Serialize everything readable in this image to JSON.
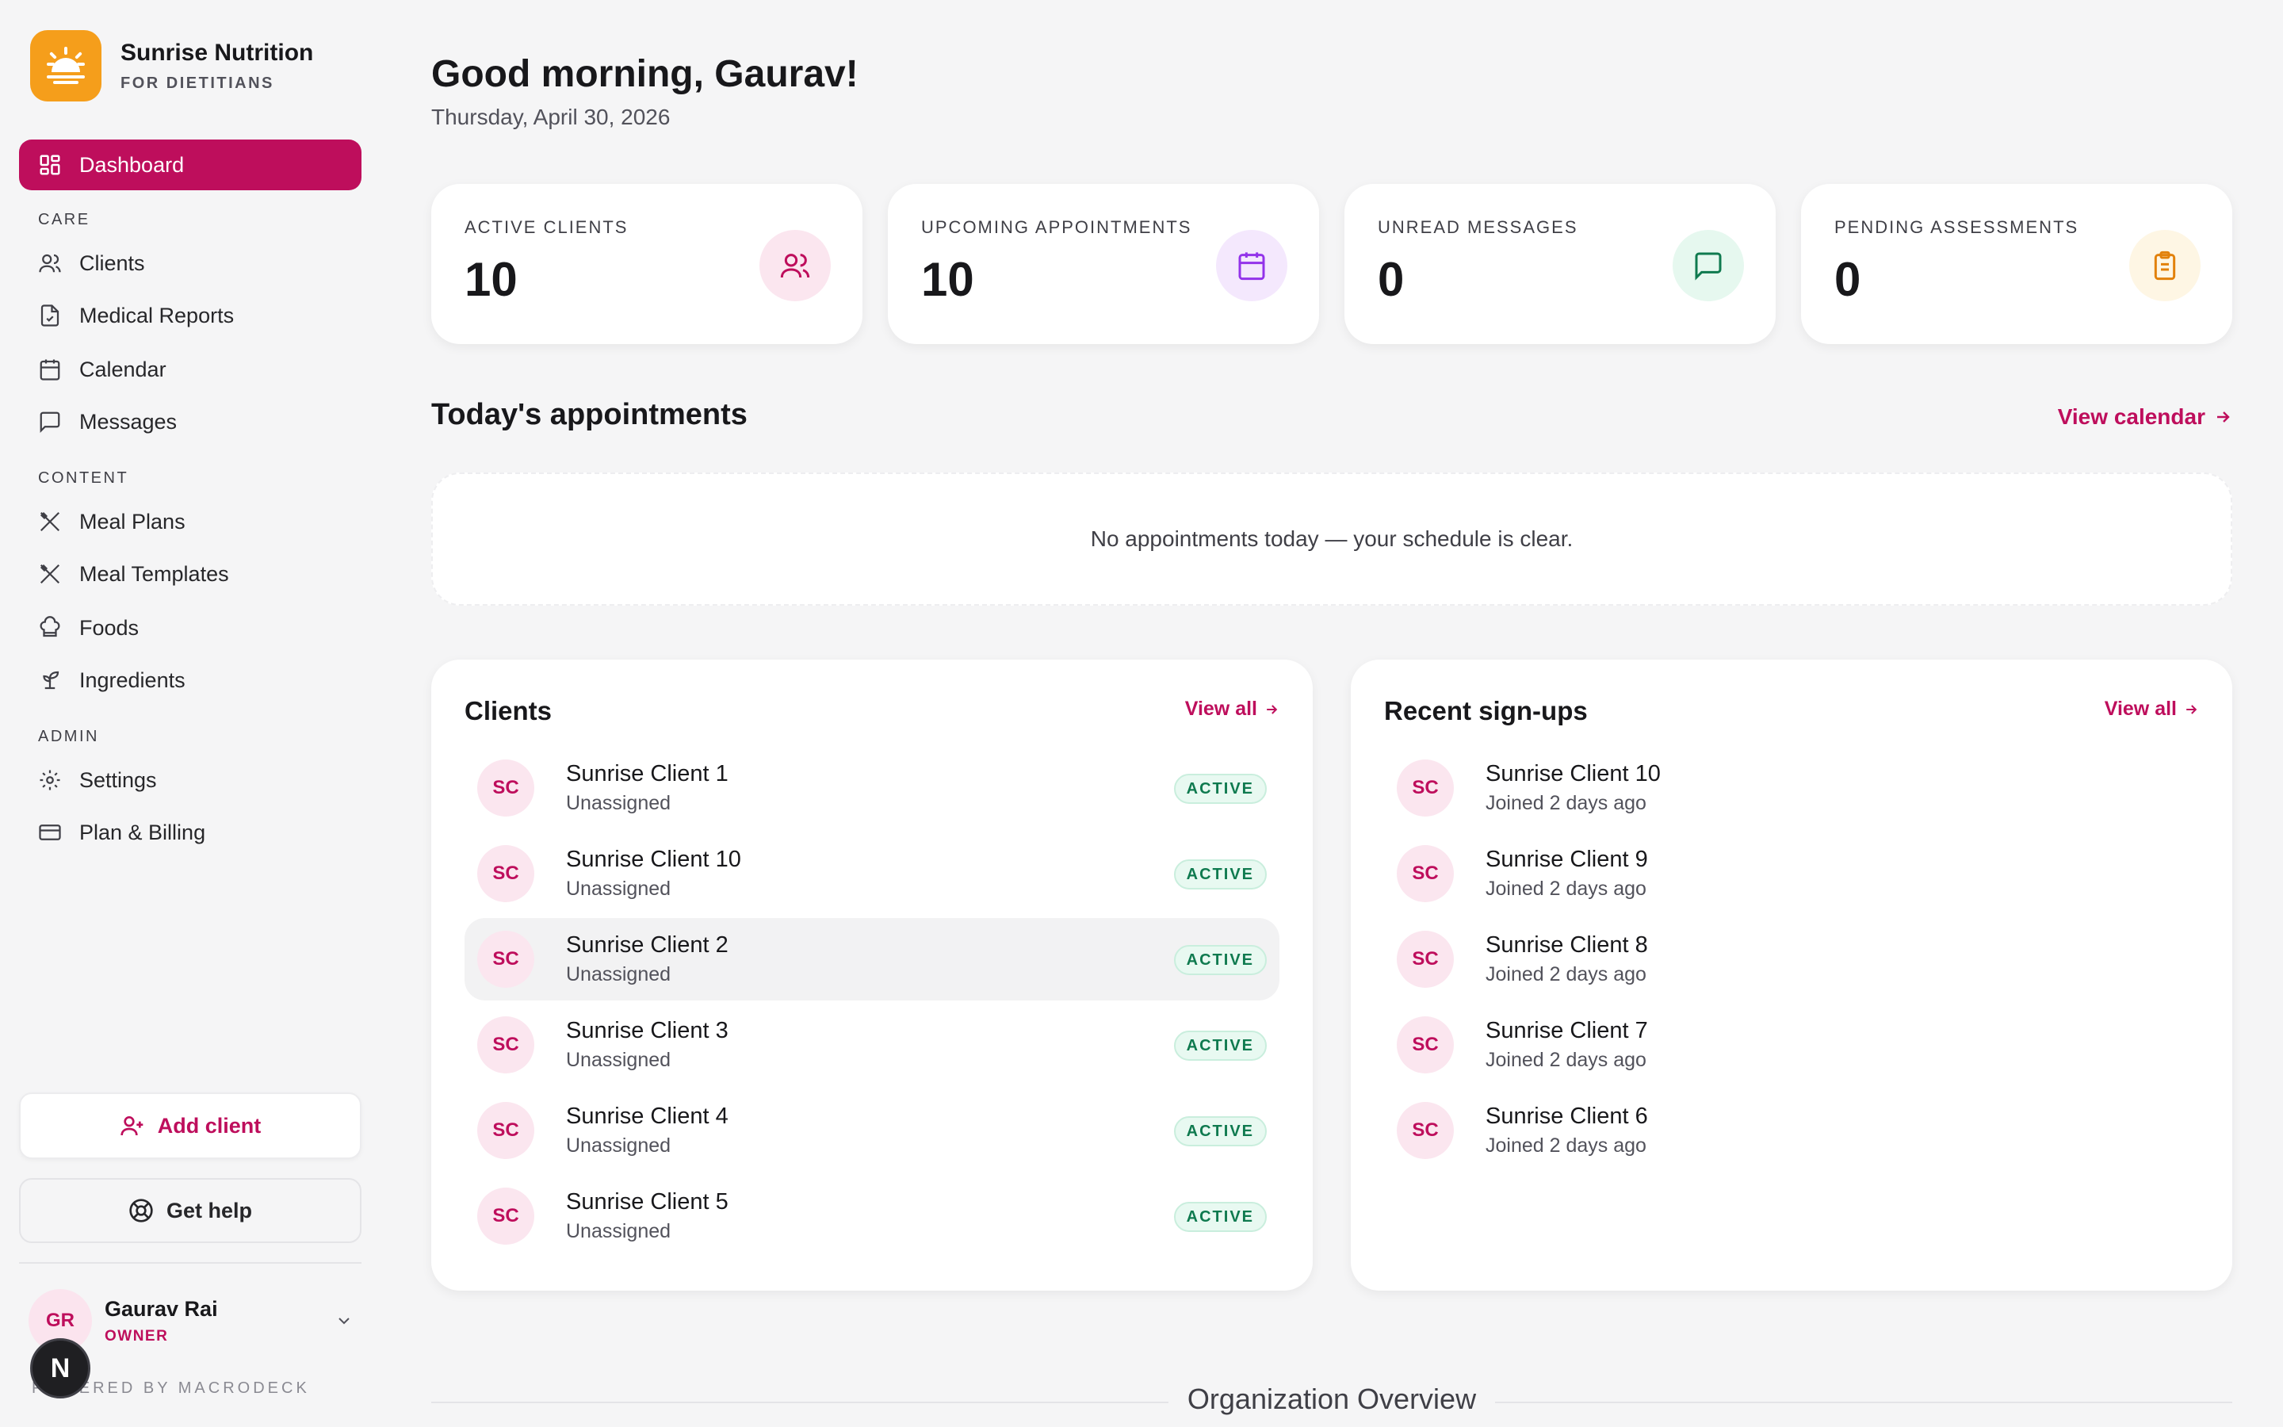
{
  "brand": {
    "name": "Sunrise Nutrition",
    "tagline": "FOR DIETITIANS",
    "accent": "#be0e5c",
    "logo_color": "#f59e1b"
  },
  "nav": {
    "active": {
      "label": "Dashboard",
      "icon": "dashboard-icon"
    },
    "sections": [
      {
        "title": "CARE",
        "items": [
          {
            "label": "Clients",
            "icon": "users-icon"
          },
          {
            "label": "Medical Reports",
            "icon": "report-icon"
          },
          {
            "label": "Calendar",
            "icon": "calendar-icon"
          },
          {
            "label": "Messages",
            "icon": "message-icon"
          }
        ]
      },
      {
        "title": "CONTENT",
        "items": [
          {
            "label": "Meal Plans",
            "icon": "utensils-icon"
          },
          {
            "label": "Meal Templates",
            "icon": "utensils-icon"
          },
          {
            "label": "Foods",
            "icon": "chef-hat-icon"
          },
          {
            "label": "Ingredients",
            "icon": "sprout-icon"
          }
        ]
      },
      {
        "title": "ADMIN",
        "items": [
          {
            "label": "Settings",
            "icon": "gear-icon"
          },
          {
            "label": "Plan & Billing",
            "icon": "credit-card-icon"
          }
        ]
      }
    ]
  },
  "sidebar_actions": {
    "add_client": "Add client",
    "get_help": "Get help"
  },
  "user": {
    "initials": "GR",
    "name": "Gaurav Rai",
    "role": "OWNER"
  },
  "powered_by": "POWERED BY MACRODECK",
  "dev_badge": "N",
  "header": {
    "greeting": "Good morning, Gaurav!",
    "date": "Thursday, April 30, 2026"
  },
  "stats": [
    {
      "label": "ACTIVE CLIENTS",
      "value": "10",
      "icon": "users-icon",
      "color": "#be0e5c",
      "bg": "#fbe6ef"
    },
    {
      "label": "UPCOMING APPOINTMENTS",
      "value": "10",
      "icon": "calendar-icon",
      "color": "#9333ea",
      "bg": "#f4e8fd"
    },
    {
      "label": "UNREAD MESSAGES",
      "value": "0",
      "icon": "message-icon",
      "color": "#0f7a4f",
      "bg": "#e6f8ef"
    },
    {
      "label": "PENDING ASSESSMENTS",
      "value": "0",
      "icon": "clipboard-icon",
      "color": "#e2810b",
      "bg": "#fef6e4"
    }
  ],
  "appointments": {
    "title": "Today's appointments",
    "link": "View calendar",
    "empty": "No appointments today — your schedule is clear."
  },
  "clients": {
    "title": "Clients",
    "link": "View all",
    "rows": [
      {
        "initials": "SC",
        "name": "Sunrise Client 1",
        "sub": "Unassigned",
        "status": "ACTIVE"
      },
      {
        "initials": "SC",
        "name": "Sunrise Client 10",
        "sub": "Unassigned",
        "status": "ACTIVE"
      },
      {
        "initials": "SC",
        "name": "Sunrise Client 2",
        "sub": "Unassigned",
        "status": "ACTIVE"
      },
      {
        "initials": "SC",
        "name": "Sunrise Client 3",
        "sub": "Unassigned",
        "status": "ACTIVE"
      },
      {
        "initials": "SC",
        "name": "Sunrise Client 4",
        "sub": "Unassigned",
        "status": "ACTIVE"
      },
      {
        "initials": "SC",
        "name": "Sunrise Client 5",
        "sub": "Unassigned",
        "status": "ACTIVE"
      }
    ]
  },
  "signups": {
    "title": "Recent sign-ups",
    "link": "View all",
    "rows": [
      {
        "initials": "SC",
        "name": "Sunrise Client 10",
        "sub": "Joined 2 days ago"
      },
      {
        "initials": "SC",
        "name": "Sunrise Client 9",
        "sub": "Joined 2 days ago"
      },
      {
        "initials": "SC",
        "name": "Sunrise Client 8",
        "sub": "Joined 2 days ago"
      },
      {
        "initials": "SC",
        "name": "Sunrise Client 7",
        "sub": "Joined 2 days ago"
      },
      {
        "initials": "SC",
        "name": "Sunrise Client 6",
        "sub": "Joined 2 days ago"
      }
    ]
  },
  "org_overview": "Organization Overview"
}
